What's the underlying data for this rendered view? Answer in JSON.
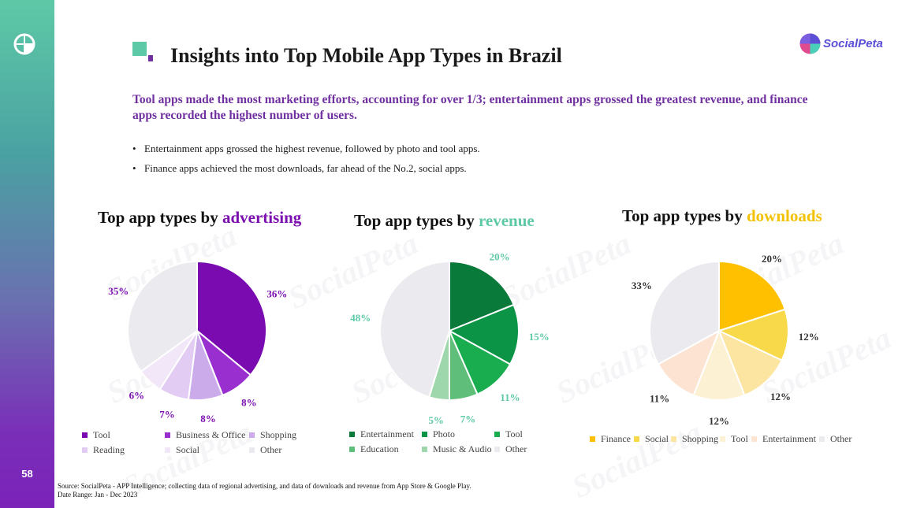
{
  "page": {
    "number": "58",
    "title": "Insights into Top Mobile App Types in Brazil",
    "brand": "SocialPeta",
    "watermark": "SocialPeta",
    "subtitle": "Tool apps made the most marketing efforts, accounting for over 1/3; entertainment apps grossed the greatest revenue, and finance apps recorded the highest number of users.",
    "bullets": [
      "Entertainment apps grossed the highest revenue, followed by photo and tool apps.",
      "Finance apps achieved the most downloads, far ahead of the No.2, social apps."
    ],
    "source_line1": "Source: SocialPeta - APP Intelligence; collecting data of regional advertising, and data of downloads and revenue from App Store & Google Play.",
    "source_line2": "Date Range: Jan - Dec 2023"
  },
  "colors": {
    "purple": "#7030a0",
    "teal": "#5ec9a6",
    "gold": "#f2c200"
  },
  "chart_data": [
    {
      "type": "pie",
      "title_prefix": "Top app types by ",
      "title_highlight": "advertising",
      "highlight_color": "#7b0fb0",
      "label_color": "#7b0fb0",
      "categories": [
        "Tool",
        "Business & Office",
        "Shopping",
        "Reading",
        "Social",
        "Other"
      ],
      "values": [
        36,
        8,
        8,
        7,
        6,
        35
      ],
      "labels": [
        "36%",
        "8%",
        "8%",
        "7%",
        "6%",
        "35%"
      ],
      "colors": [
        "#7a0bb0",
        "#9a2fd0",
        "#ccabea",
        "#e3ccf3",
        "#f1e7f8",
        "#ebebef"
      ]
    },
    {
      "type": "pie",
      "title_prefix": "Top app types by ",
      "title_highlight": "revenue",
      "highlight_color": "#5ec9a6",
      "label_color": "#5ec9a6",
      "categories": [
        "Entertainment",
        "Photo",
        "Tool",
        "Education",
        "Music & Audio",
        "Other"
      ],
      "values": [
        20,
        15,
        11,
        7,
        5,
        48
      ],
      "labels": [
        "20%",
        "15%",
        "11%",
        "7%",
        "5%",
        "48%"
      ],
      "colors": [
        "#0a7a3a",
        "#0b9446",
        "#1aad50",
        "#5fbf7a",
        "#9fd7ad",
        "#ebebef"
      ]
    },
    {
      "type": "pie",
      "title_prefix": "Top app types by ",
      "title_highlight": "downloads",
      "highlight_color": "#f2c200",
      "label_color": "#333333",
      "categories": [
        "Finance",
        "Social",
        "Shopping",
        "Tool",
        "Entertainment",
        "Other"
      ],
      "values": [
        20,
        12,
        12,
        12,
        11,
        33
      ],
      "labels": [
        "20%",
        "12%",
        "12%",
        "12%",
        "11%",
        "33%"
      ],
      "colors": [
        "#ffc000",
        "#f8d94a",
        "#fbe5a0",
        "#fdf1d4",
        "#fce3d2",
        "#ebebef"
      ]
    }
  ]
}
